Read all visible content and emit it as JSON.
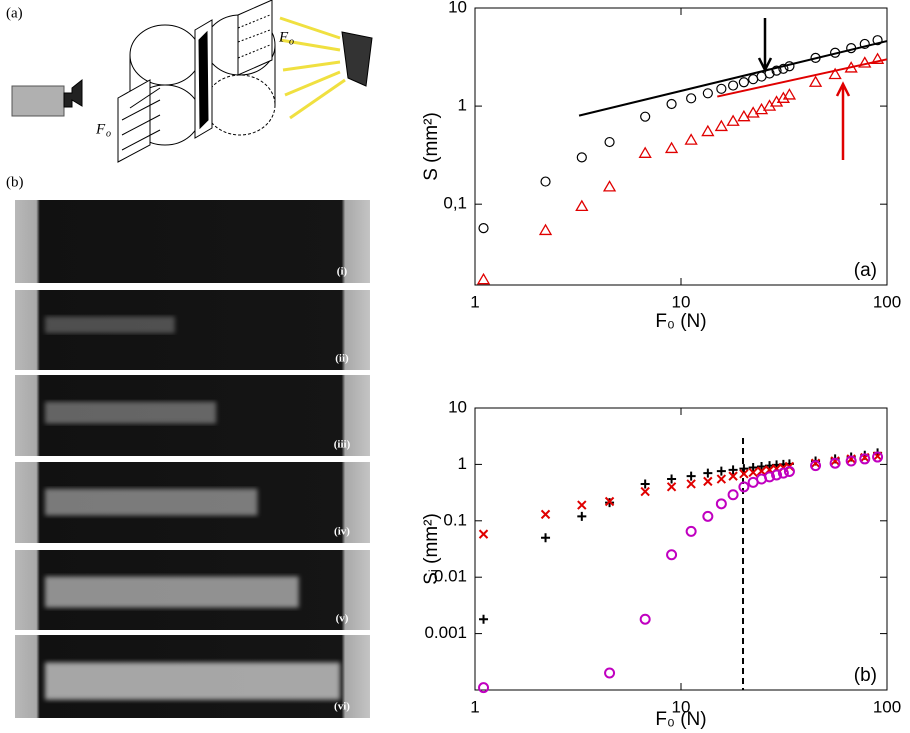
{
  "chart_data": [
    {
      "type": "scatter",
      "xlabel": "F₀  (N)",
      "ylabel": "S  (mm²)",
      "annotation": "(a)",
      "xscale": "log",
      "yscale": "log",
      "xlim": [
        1,
        100
      ],
      "ylim": [
        0.015,
        10
      ],
      "xticks": [
        1,
        10,
        100
      ],
      "yticks": [
        10,
        1,
        {
          "value": 0.1,
          "label": "0,1"
        }
      ],
      "x": [
        1.1,
        2.2,
        3.3,
        4.5,
        6.7,
        9,
        11.2,
        13.5,
        15.7,
        17.9,
        20.2,
        22.4,
        24.6,
        26.9,
        29.1,
        31.4,
        33.6,
        45,
        56,
        67,
        78,
        90
      ],
      "series": [
        {
          "color": "#000000",
          "marker": "circle",
          "values": [
            0.057,
            0.17,
            0.3,
            0.43,
            0.78,
            1.05,
            1.2,
            1.35,
            1.5,
            1.62,
            1.75,
            1.88,
            2.0,
            2.15,
            2.3,
            2.4,
            2.55,
            3.1,
            3.5,
            3.9,
            4.3,
            4.7
          ]
        },
        {
          "color": "#e00000",
          "marker": "triangle",
          "values": [
            0.017,
            0.054,
            0.095,
            0.15,
            0.33,
            0.37,
            0.45,
            0.55,
            0.62,
            0.7,
            0.78,
            0.85,
            0.92,
            1.0,
            1.1,
            1.2,
            1.3,
            1.75,
            2.1,
            2.45,
            2.75,
            3.0
          ]
        }
      ],
      "fit_lines": [
        {
          "color": "#000000",
          "x": [
            3.2,
            100
          ],
          "values": [
            0.8,
            4.6
          ]
        },
        {
          "color": "#e00000",
          "x": [
            15,
            100
          ],
          "values": [
            1.25,
            3.0
          ]
        }
      ]
    },
    {
      "type": "scatter",
      "xlabel": "F₀  (N)",
      "ylabel": "Sᵢ  (mm²)",
      "annotation": "(b)",
      "xscale": "log",
      "yscale": "log",
      "xlim": [
        1,
        100
      ],
      "ylim": [
        0.0001,
        10
      ],
      "xticks": [
        1,
        10,
        100
      ],
      "yticks": [
        10,
        1,
        0.1,
        0.01,
        0.001
      ],
      "x": [
        1.1,
        2.2,
        3.3,
        4.5,
        6.7,
        9,
        11.2,
        13.5,
        15.7,
        17.9,
        20.2,
        22.4,
        24.6,
        26.9,
        29.1,
        31.4,
        33.6,
        45,
        56,
        67,
        78,
        90
      ],
      "series": [
        {
          "color": "#000000",
          "marker": "plus",
          "values": [
            0.0018,
            0.05,
            0.12,
            0.21,
            0.45,
            0.55,
            0.62,
            0.7,
            0.76,
            0.8,
            0.84,
            0.88,
            0.92,
            0.95,
            0.98,
            1.0,
            1.02,
            1.15,
            1.25,
            1.35,
            1.45,
            1.6
          ]
        },
        {
          "color": "#e00000",
          "marker": "x",
          "values": [
            0.058,
            0.13,
            0.19,
            0.22,
            0.33,
            0.4,
            0.45,
            0.5,
            0.55,
            0.62,
            0.68,
            0.72,
            0.76,
            0.8,
            0.84,
            0.88,
            0.92,
            1.05,
            1.15,
            1.25,
            1.32,
            1.4
          ]
        },
        {
          "color": "#c000c0",
          "marker": "circle",
          "values": [
            0.00011,
            null,
            null,
            0.0002,
            0.0018,
            0.025,
            0.065,
            0.12,
            0.2,
            0.29,
            0.4,
            0.48,
            0.55,
            0.6,
            0.65,
            0.7,
            0.75,
            0.95,
            1.05,
            1.15,
            1.25,
            1.35
          ]
        }
      ],
      "vline": 20
    }
  ],
  "figure": {
    "panel_labels": [
      "(a)",
      "(b)"
    ],
    "diagram": {
      "force_label": "F",
      "force_subscript": "o"
    },
    "strips": [
      "(i)",
      "(ii)",
      "(iii)",
      "(iv)",
      "(v)",
      "(vi)"
    ]
  }
}
